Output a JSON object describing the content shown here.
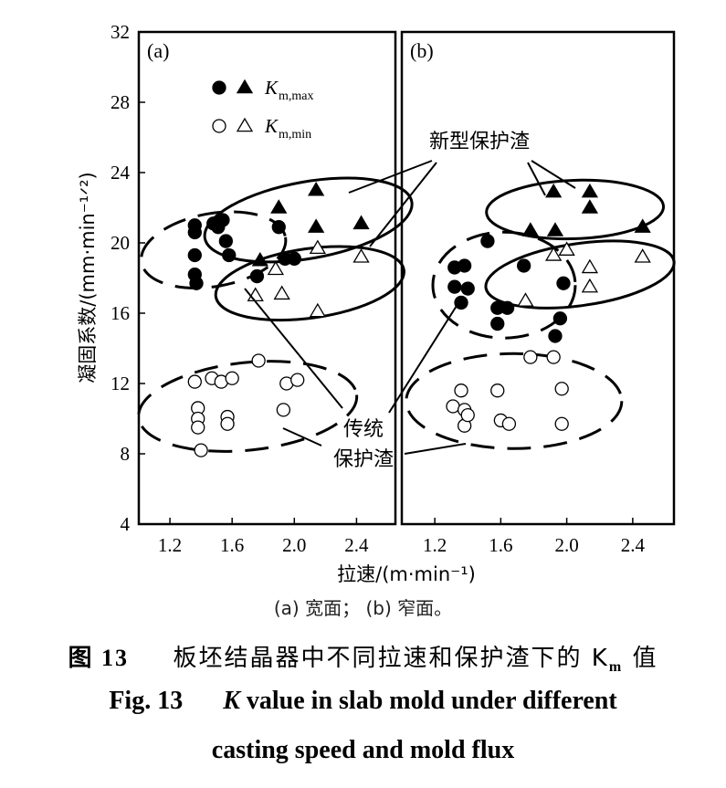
{
  "chart_data": {
    "type": "scatter",
    "ylabel": "凝固系数/(mm·min⁻¹ᐟ²)",
    "xlabel": "拉速/(m·min⁻¹)",
    "ylim": [
      4,
      32
    ],
    "y_ticks": [
      "4",
      "8",
      "12",
      "16",
      "20",
      "24",
      "28",
      "32"
    ],
    "x_ticks": [
      "1.2",
      "1.6",
      "2.0",
      "2.4"
    ],
    "xlim": [
      1.0,
      2.65
    ],
    "legend": {
      "max_label": "K",
      "max_sub": "m,max",
      "min_label": "K",
      "min_sub": "m,min"
    },
    "annotations": {
      "new_flux": "新型保护渣",
      "trad_flux_line1": "传统",
      "trad_flux_line2": "保护渣"
    },
    "panels": [
      {
        "label": "(a)",
        "series": [
          {
            "name": "传统保护渣 Km,max",
            "marker": "filled-circle",
            "points": [
              [
                1.36,
                21.0
              ],
              [
                1.36,
                20.6
              ],
              [
                1.36,
                19.3
              ],
              [
                1.36,
                18.2
              ],
              [
                1.37,
                17.7
              ],
              [
                1.48,
                21.1
              ],
              [
                1.51,
                20.9
              ],
              [
                1.54,
                21.3
              ],
              [
                1.56,
                20.1
              ],
              [
                1.58,
                19.3
              ],
              [
                1.76,
                18.1
              ],
              [
                1.9,
                20.9
              ],
              [
                1.94,
                19.1
              ],
              [
                2.0,
                19.1
              ]
            ]
          },
          {
            "name": "新型保护渣 Km,max",
            "marker": "filled-triangle",
            "points": [
              [
                1.78,
                19.0
              ],
              [
                1.9,
                22.0
              ],
              [
                2.14,
                23.0
              ],
              [
                2.14,
                20.9
              ],
              [
                2.43,
                21.1
              ]
            ]
          },
          {
            "name": "传统保护渣 Km,min",
            "marker": "open-circle",
            "points": [
              [
                1.36,
                12.1
              ],
              [
                1.38,
                10.6
              ],
              [
                1.38,
                10.0
              ],
              [
                1.38,
                9.5
              ],
              [
                1.4,
                8.2
              ],
              [
                1.47,
                12.3
              ],
              [
                1.53,
                12.1
              ],
              [
                1.57,
                10.1
              ],
              [
                1.57,
                9.7
              ],
              [
                1.6,
                12.3
              ],
              [
                1.77,
                13.3
              ],
              [
                1.93,
                10.5
              ],
              [
                1.95,
                12.0
              ],
              [
                2.02,
                12.2
              ]
            ]
          },
          {
            "name": "新型保护渣 Km,min",
            "marker": "open-triangle",
            "points": [
              [
                1.75,
                17.0
              ],
              [
                1.88,
                18.5
              ],
              [
                1.92,
                17.1
              ],
              [
                2.15,
                19.7
              ],
              [
                2.15,
                16.1
              ],
              [
                2.43,
                19.2
              ]
            ]
          }
        ]
      },
      {
        "label": "(b)",
        "series": [
          {
            "name": "传统保护渣 Km,max",
            "marker": "filled-circle",
            "points": [
              [
                1.32,
                18.6
              ],
              [
                1.32,
                17.5
              ],
              [
                1.36,
                16.6
              ],
              [
                1.38,
                18.7
              ],
              [
                1.4,
                17.4
              ],
              [
                1.52,
                20.1
              ],
              [
                1.58,
                16.3
              ],
              [
                1.58,
                15.4
              ],
              [
                1.64,
                16.3
              ],
              [
                1.74,
                18.7
              ],
              [
                1.93,
                14.7
              ],
              [
                1.96,
                15.7
              ],
              [
                1.98,
                17.7
              ]
            ]
          },
          {
            "name": "新型保护渣 Km,max",
            "marker": "filled-triangle",
            "points": [
              [
                1.78,
                20.7
              ],
              [
                1.92,
                22.9
              ],
              [
                1.93,
                20.7
              ],
              [
                2.14,
                22.9
              ],
              [
                2.14,
                22.0
              ],
              [
                2.46,
                20.9
              ]
            ]
          },
          {
            "name": "传统保护渣 Km,min",
            "marker": "open-circle",
            "points": [
              [
                1.31,
                10.7
              ],
              [
                1.36,
                11.6
              ],
              [
                1.38,
                10.5
              ],
              [
                1.38,
                9.6
              ],
              [
                1.4,
                10.2
              ],
              [
                1.58,
                11.6
              ],
              [
                1.6,
                9.9
              ],
              [
                1.65,
                9.7
              ],
              [
                1.78,
                13.5
              ],
              [
                1.92,
                13.5
              ],
              [
                1.97,
                11.7
              ],
              [
                1.97,
                9.7
              ]
            ]
          },
          {
            "name": "新型保护渣 Km,min",
            "marker": "open-triangle",
            "points": [
              [
                1.75,
                16.7
              ],
              [
                1.92,
                19.3
              ],
              [
                2.0,
                19.6
              ],
              [
                2.14,
                18.6
              ],
              [
                2.14,
                17.5
              ],
              [
                2.46,
                19.2
              ]
            ]
          }
        ]
      }
    ]
  },
  "captions": {
    "sub": "(a) 宽面； (b) 窄面。",
    "cn_prefix": "图 13",
    "cn_text": "板坯结晶器中不同拉速和保护渣下的 K",
    "cn_sub": "m",
    "cn_suffix": "值",
    "en_line1_num": "Fig. 13",
    "en_line1_k": "K",
    "en_line1_text": "value in slab mold under different",
    "en_line2": "casting speed and mold flux"
  }
}
